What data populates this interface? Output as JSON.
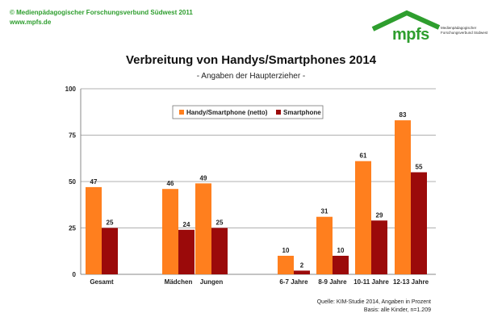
{
  "header": {
    "copyright": "© Medienpädagogischer Forschungsverbund Südwest 2011",
    "website": "www.mpfs.de",
    "logo_text": "mpfs",
    "logo_subtext": "Medienpädagogischer Forschungsverbund Südwest"
  },
  "colors": {
    "accent": "#2e9e2e",
    "series1": "#ff7f1e",
    "series2": "#9b0a0a"
  },
  "source": {
    "line1": "Quelle: KIM-Studie 2014, Angaben in Prozent",
    "line2": "Basis: alle Kinder, n=1.209"
  },
  "chart_data": {
    "type": "bar",
    "title": "Verbreitung von Handys/Smartphones 2014",
    "subtitle": "- Angaben der Haupterzieher -",
    "categories": [
      "Gesamt",
      "Mädchen",
      "Jungen",
      "6-7 Jahre",
      "8-9 Jahre",
      "10-11 Jahre",
      "12-13 Jahre"
    ],
    "series": [
      {
        "name": "Handy/Smartphone (netto)",
        "values": [
          47,
          46,
          49,
          10,
          31,
          61,
          83
        ],
        "color": "#ff7f1e"
      },
      {
        "name": "Smartphone",
        "values": [
          25,
          24,
          25,
          2,
          10,
          29,
          55
        ],
        "color": "#9b0a0a"
      }
    ],
    "ylim": [
      0,
      100
    ],
    "yticks": [
      0,
      25,
      50,
      75,
      100
    ],
    "legend": "top-center",
    "grid": true
  }
}
